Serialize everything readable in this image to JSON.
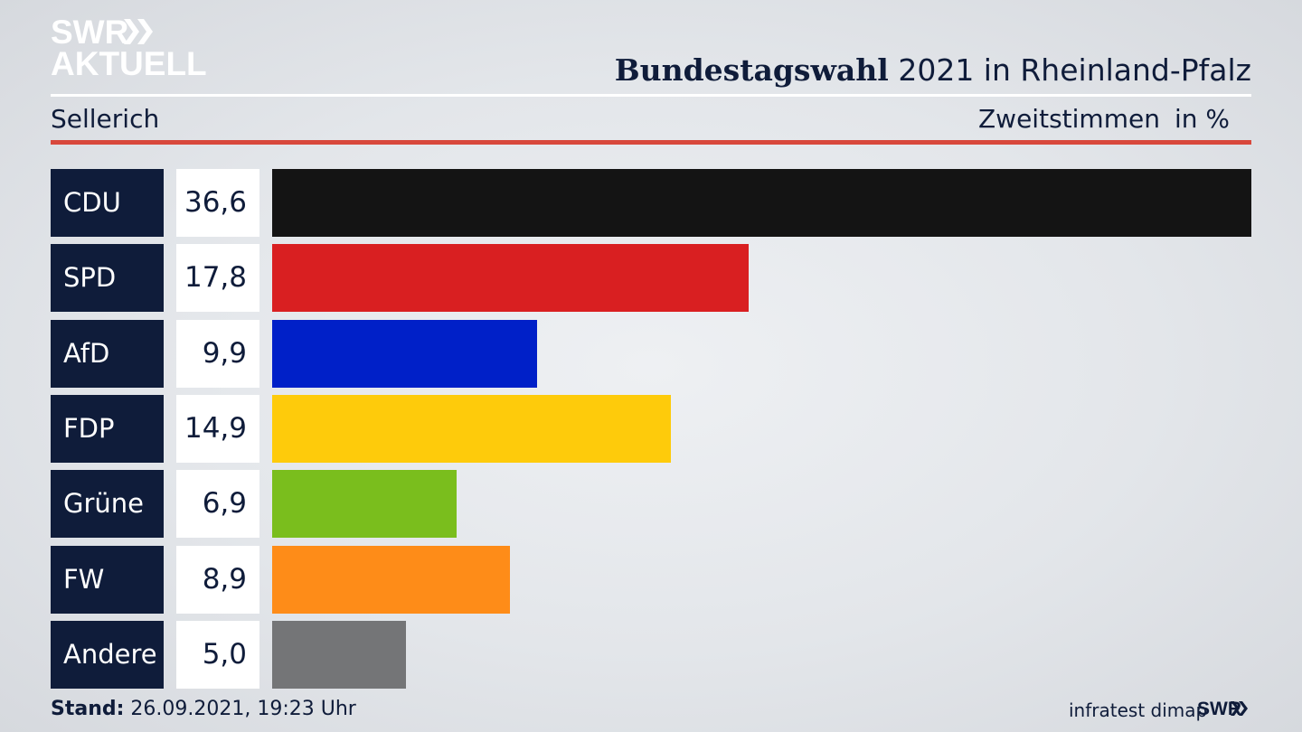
{
  "branding": {
    "logo_line1": "SWR",
    "logo_line2": "AKTUELL",
    "logo_icon": "double-chevron-icon",
    "footer_logo": "SWR"
  },
  "header": {
    "title_bold": "Bundestagswahl",
    "title_rest": "2021 in Rheinland-Pfalz",
    "region": "Sellerich",
    "metric": "Zweitstimmen",
    "unit": "in %"
  },
  "footer": {
    "stand_label": "Stand:",
    "stand_value": "26.09.2021, 19:23 Uhr",
    "source": "infratest dimap"
  },
  "colors": {
    "navy": "#0f1c3a",
    "accent_red": "#d8483c"
  },
  "chart_data": {
    "type": "bar",
    "orientation": "horizontal",
    "categories": [
      "CDU",
      "SPD",
      "AfD",
      "FDP",
      "Grüne",
      "FW",
      "Andere"
    ],
    "values": [
      36.6,
      17.8,
      9.9,
      14.9,
      6.9,
      8.9,
      5.0
    ],
    "value_labels": [
      "36,6",
      "17,8",
      "9,9",
      "14,9",
      "6,9",
      "8,9",
      "5,0"
    ],
    "colors": [
      "#141414",
      "#d91f21",
      "#0020c8",
      "#fecb0b",
      "#7abe1d",
      "#fe8c18",
      "#747577"
    ],
    "xlim": [
      0,
      36.6
    ],
    "grid": false,
    "legend": "none"
  }
}
